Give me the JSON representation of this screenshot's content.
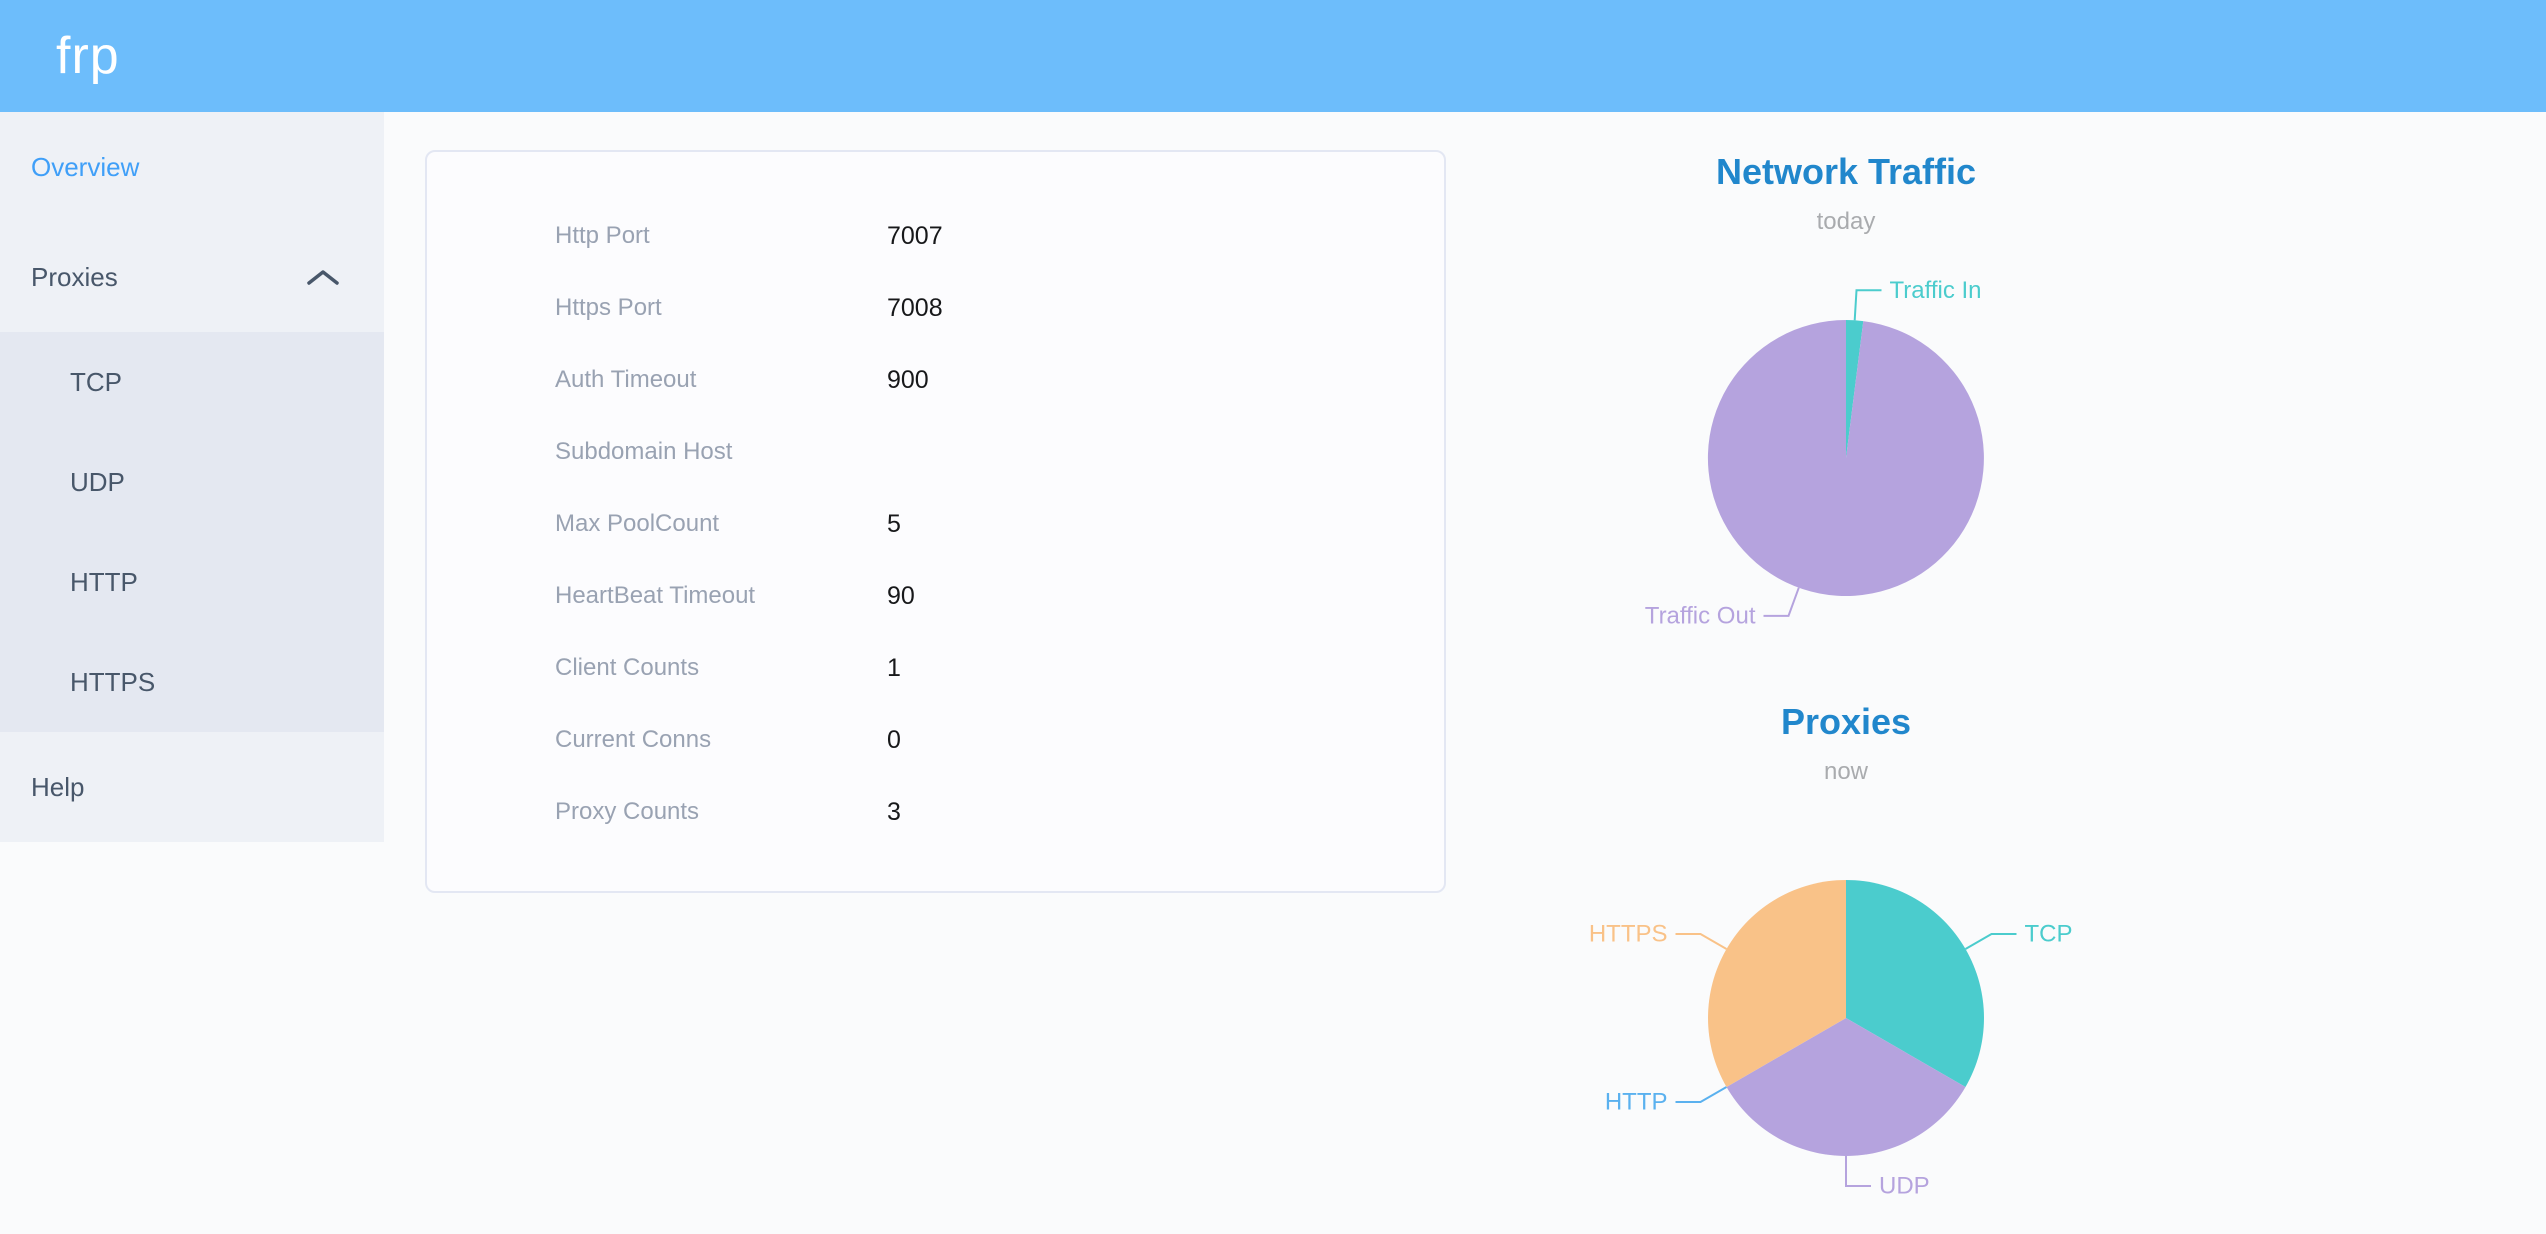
{
  "header": {
    "logo": "frp"
  },
  "sidebar": {
    "overview_label": "Overview",
    "proxies_label": "Proxies",
    "proxies_children": [
      "TCP",
      "UDP",
      "HTTP",
      "HTTPS"
    ],
    "help_label": "Help",
    "active_item": "Overview"
  },
  "server_info": {
    "rows": [
      {
        "label": "Http Port",
        "value": "7007"
      },
      {
        "label": "Https Port",
        "value": "7008"
      },
      {
        "label": "Auth Timeout",
        "value": "900"
      },
      {
        "label": "Subdomain Host",
        "value": ""
      },
      {
        "label": "Max PoolCount",
        "value": "5"
      },
      {
        "label": "HeartBeat Timeout",
        "value": "90"
      },
      {
        "label": "Client Counts",
        "value": "1"
      },
      {
        "label": "Current Conns",
        "value": "0"
      },
      {
        "label": "Proxy Counts",
        "value": "3"
      }
    ]
  },
  "chart_data": [
    {
      "type": "pie",
      "title": "Network Traffic",
      "subtitle": "today",
      "unit": "percent-of-total",
      "series": [
        {
          "name": "Traffic In",
          "value": 2,
          "color": "#4bcccd"
        },
        {
          "name": "Traffic Out",
          "value": 98,
          "color": "#b5a3de"
        }
      ],
      "label_position": "outside",
      "legend_position": "none",
      "label_angles": {
        "Traffic Out": 200
      }
    },
    {
      "type": "pie",
      "title": "Proxies",
      "subtitle": "now",
      "unit": "count",
      "series": [
        {
          "name": "TCP",
          "value": 1,
          "color": "#4bcccd"
        },
        {
          "name": "UDP",
          "value": 1,
          "color": "#b5a3de"
        },
        {
          "name": "HTTP",
          "value": 0,
          "color": "#5ab1ef"
        },
        {
          "name": "HTTPS",
          "value": 1,
          "color": "#f9c288"
        }
      ],
      "label_position": "outside",
      "legend_position": "none"
    }
  ]
}
